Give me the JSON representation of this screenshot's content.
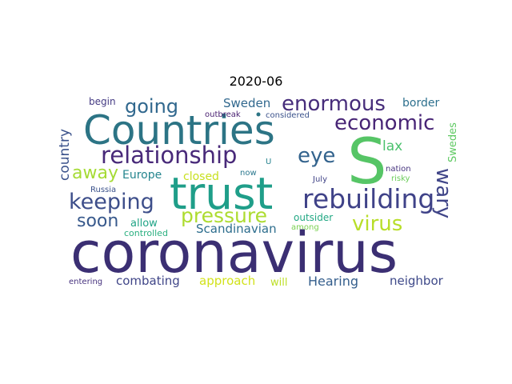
{
  "chart_data": {
    "type": "wordcloud",
    "title": "2020-06",
    "words": [
      {
        "text": "coronavirus",
        "color": "#3b2f73"
      },
      {
        "text": "Countries",
        "color": "#2c7485"
      },
      {
        "text": "S",
        "color": "#56c566"
      },
      {
        "text": "trust",
        "color": "#1f9e89"
      },
      {
        "text": "rebuilding",
        "color": "#3f4288"
      },
      {
        "text": "relationship",
        "color": "#482979"
      },
      {
        "text": "enormous",
        "color": "#472d7b"
      },
      {
        "text": "economic",
        "color": "#482576"
      },
      {
        "text": "keeping",
        "color": "#3d4e8a"
      },
      {
        "text": "pressure",
        "color": "#addc30"
      },
      {
        "text": "virus",
        "color": "#b8de29"
      },
      {
        "text": "going",
        "color": "#31688e"
      },
      {
        "text": "eye",
        "color": "#33638d"
      },
      {
        "text": "wary",
        "color": "#404588"
      },
      {
        "text": "soon",
        "color": "#38598c"
      },
      {
        "text": "away",
        "color": "#a5db36"
      },
      {
        "text": "country",
        "color": "#3b528b"
      },
      {
        "text": "Sweden",
        "color": "#31688e"
      },
      {
        "text": "border",
        "color": "#2d708e"
      },
      {
        "text": "lax",
        "color": "#4ac16d"
      },
      {
        "text": "Swedes",
        "color": "#5ec962"
      },
      {
        "text": "Europe",
        "color": "#25858e"
      },
      {
        "text": "closed",
        "color": "#c8e020"
      },
      {
        "text": "Scandinavian",
        "color": "#2e6e8e"
      },
      {
        "text": "outsider",
        "color": "#22a884"
      },
      {
        "text": "Hearing",
        "color": "#355f8d"
      },
      {
        "text": "neighbor",
        "color": "#3e4989"
      },
      {
        "text": "combating",
        "color": "#404688"
      },
      {
        "text": "approach",
        "color": "#d2e21b"
      },
      {
        "text": "will",
        "color": "#bddf26"
      },
      {
        "text": "allow",
        "color": "#20a486"
      },
      {
        "text": "controlled",
        "color": "#29af7f"
      },
      {
        "text": "among",
        "color": "#7ad151"
      },
      {
        "text": "begin",
        "color": "#443a83"
      },
      {
        "text": "outbreak",
        "color": "#481f70"
      },
      {
        "text": "considered",
        "color": "#3b528b"
      },
      {
        "text": "nation",
        "color": "#46337e"
      },
      {
        "text": "risky",
        "color": "#6ccd5a"
      },
      {
        "text": "July",
        "color": "#414487"
      },
      {
        "text": "now",
        "color": "#2a788e"
      },
      {
        "text": "U",
        "color": "#26828e"
      },
      {
        "text": "Russia",
        "color": "#3b528b"
      },
      {
        "text": "entering",
        "color": "#46327e"
      }
    ]
  }
}
